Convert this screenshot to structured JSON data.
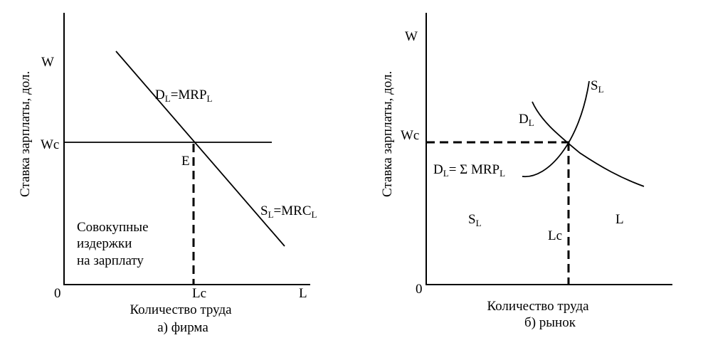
{
  "left": {
    "y_axis_label": "Ставка зарплаты, дол.",
    "w_label": "W",
    "wc_label": "Wc",
    "origin_label": "0",
    "lc_label": "Lc",
    "l_label": "L",
    "e_label": "E",
    "demand_label": {
      "main": "D",
      "sub": "L",
      "rest": "=MRP",
      "rest_sub": "L"
    },
    "supply_label": {
      "main": "S",
      "sub": "L",
      "rest": "=MRC",
      "rest_sub": "L"
    },
    "area_lines": [
      "Совокупные",
      "издержки",
      "на зарплату"
    ],
    "x_axis_label": "Количество труда",
    "caption": "а) фирма"
  },
  "right": {
    "y_axis_label": "Ставка зарплаты, дол.",
    "w_label": "W",
    "wc_label": "Wc",
    "origin_label": "0",
    "lc_label": "Lc",
    "l_label": "L",
    "sl_curve_label": {
      "main": "S",
      "sub": "L"
    },
    "dl_curve_label": {
      "main": "D",
      "sub": "L"
    },
    "sum_label": {
      "main": "D",
      "sub": "L",
      "rest": "= Σ MRP",
      "rest_sub": "L"
    },
    "sl_area_label": {
      "main": "S",
      "sub": "L"
    },
    "x_axis_label": "Количество труда",
    "caption": "б) рынок"
  }
}
